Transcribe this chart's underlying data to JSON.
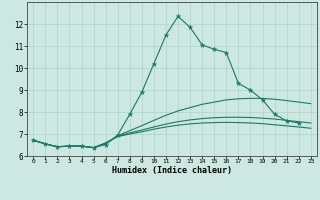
{
  "xlabel": "Humidex (Indice chaleur)",
  "background_color": "#cce8e0",
  "grid_color": "#aad4cc",
  "line_color": "#1a7a6a",
  "xlim": [
    -0.5,
    23.5
  ],
  "ylim": [
    6,
    13
  ],
  "yticks": [
    6,
    7,
    8,
    9,
    10,
    11,
    12
  ],
  "xticks": [
    0,
    1,
    2,
    3,
    4,
    5,
    6,
    7,
    8,
    9,
    10,
    11,
    12,
    13,
    14,
    15,
    16,
    17,
    18,
    19,
    20,
    21,
    22,
    23
  ],
  "curves": [
    {
      "x": [
        0,
        1,
        2,
        3,
        4,
        5,
        6,
        7,
        8,
        9,
        10,
        11,
        12,
        13,
        14,
        15,
        16,
        17,
        18,
        19,
        20,
        21,
        22
      ],
      "y": [
        6.72,
        6.55,
        6.42,
        6.45,
        6.45,
        6.38,
        6.52,
        6.95,
        7.9,
        8.9,
        10.2,
        11.5,
        12.35,
        11.85,
        11.05,
        10.85,
        10.7,
        9.3,
        9.0,
        8.55,
        7.9,
        7.6,
        7.5
      ],
      "marker": true
    },
    {
      "x": [
        0,
        1,
        2,
        3,
        4,
        5,
        6,
        7,
        8,
        9,
        10,
        11,
        12,
        13,
        14,
        15,
        16,
        17,
        18,
        19,
        20,
        21,
        22,
        23
      ],
      "y": [
        6.72,
        6.55,
        6.42,
        6.45,
        6.45,
        6.38,
        6.56,
        6.92,
        7.15,
        7.38,
        7.62,
        7.85,
        8.05,
        8.2,
        8.35,
        8.45,
        8.55,
        8.6,
        8.62,
        8.62,
        8.58,
        8.52,
        8.45,
        8.38
      ],
      "marker": false
    },
    {
      "x": [
        0,
        1,
        2,
        3,
        4,
        5,
        6,
        7,
        8,
        9,
        10,
        11,
        12,
        13,
        14,
        15,
        16,
        17,
        18,
        19,
        20,
        21,
        22,
        23
      ],
      "y": [
        6.72,
        6.55,
        6.42,
        6.45,
        6.45,
        6.38,
        6.58,
        6.9,
        7.05,
        7.18,
        7.32,
        7.45,
        7.56,
        7.64,
        7.7,
        7.74,
        7.76,
        7.76,
        7.75,
        7.72,
        7.68,
        7.62,
        7.56,
        7.5
      ],
      "marker": false
    },
    {
      "x": [
        0,
        1,
        2,
        3,
        4,
        5,
        6,
        7,
        8,
        9,
        10,
        11,
        12,
        13,
        14,
        15,
        16,
        17,
        18,
        19,
        20,
        21,
        22,
        23
      ],
      "y": [
        6.72,
        6.55,
        6.42,
        6.45,
        6.45,
        6.38,
        6.6,
        6.88,
        7.0,
        7.1,
        7.22,
        7.32,
        7.4,
        7.46,
        7.5,
        7.52,
        7.53,
        7.52,
        7.5,
        7.47,
        7.42,
        7.37,
        7.32,
        7.26
      ],
      "marker": false
    }
  ]
}
